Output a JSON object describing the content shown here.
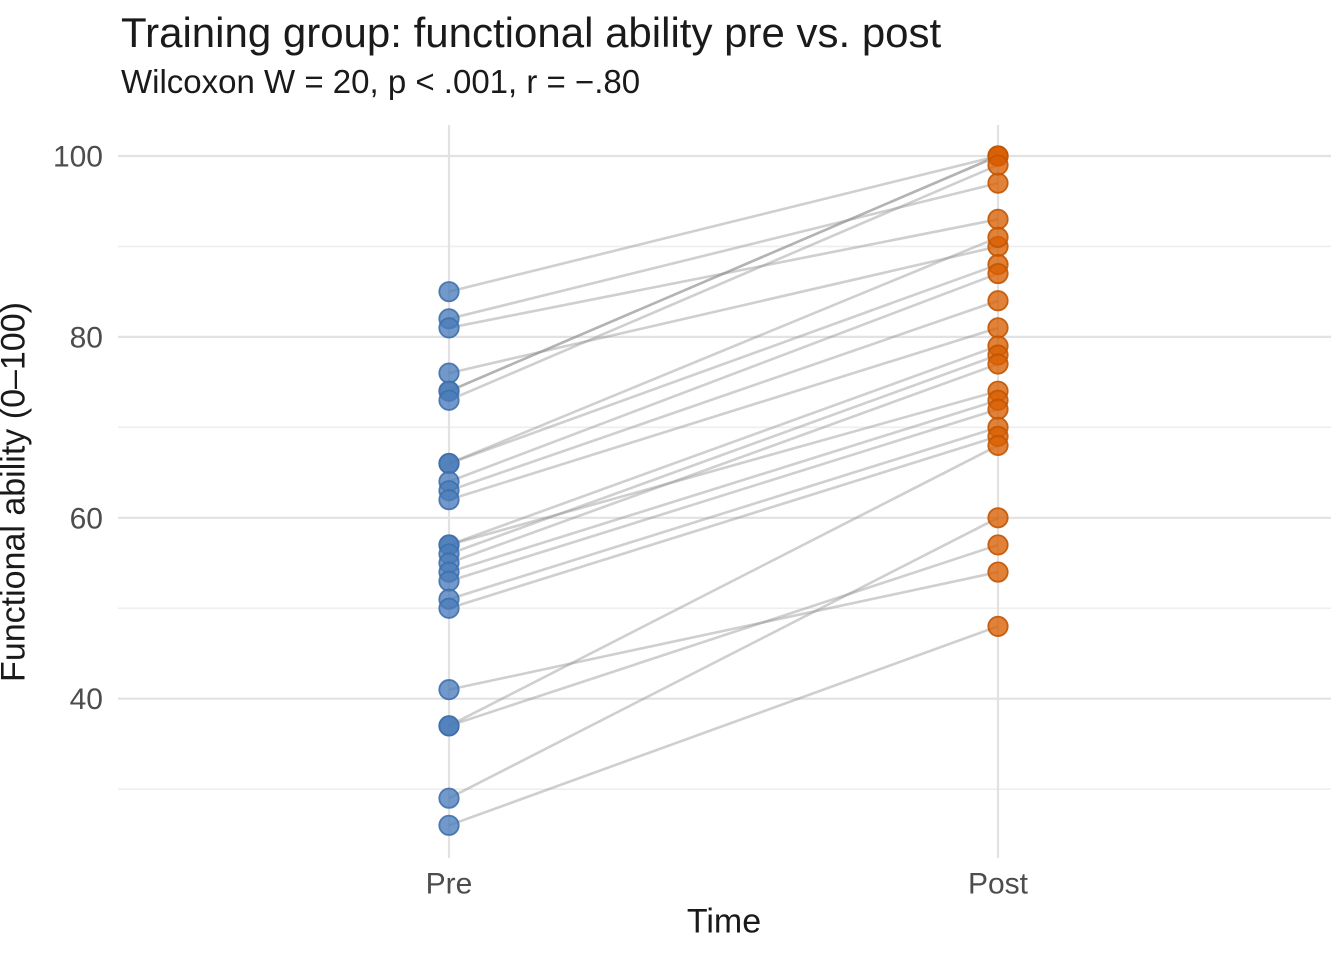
{
  "title": "Training group: functional ability pre vs. post",
  "subtitle": "Wilcoxon W = 20, p < .001, r = −.80",
  "chart_data": {
    "type": "scatter",
    "subtype": "paired-slope-chart",
    "categories": [
      "Pre",
      "Post"
    ],
    "xlabel": "Time",
    "ylabel": "Functional ability (0–100)",
    "y_major_ticks": [
      100,
      80,
      60,
      40
    ],
    "y_minor_gridlines": [
      90,
      70,
      50,
      30
    ],
    "ylim": [
      22,
      103
    ],
    "grid": "major+minor horizontal, major vertical at categories",
    "legend": "none",
    "n_pairs": 25,
    "series": [
      {
        "name": "Pre",
        "values": [
          85,
          82,
          81,
          76,
          74,
          74,
          73,
          66,
          66,
          64,
          63,
          62,
          57,
          57,
          56,
          55,
          54,
          53,
          51,
          50,
          41,
          37,
          37,
          29,
          26
        ]
      },
      {
        "name": "Post",
        "values": [
          100,
          97,
          93,
          90,
          100,
          100,
          99,
          91,
          88,
          87,
          84,
          81,
          79,
          74,
          78,
          77,
          73,
          72,
          70,
          69,
          54,
          68,
          57,
          60,
          48
        ]
      }
    ],
    "pairs": [
      [
        85,
        100
      ],
      [
        82,
        97
      ],
      [
        81,
        93
      ],
      [
        76,
        90
      ],
      [
        74,
        100
      ],
      [
        74,
        100
      ],
      [
        73,
        99
      ],
      [
        66,
        91
      ],
      [
        66,
        88
      ],
      [
        64,
        87
      ],
      [
        63,
        84
      ],
      [
        62,
        81
      ],
      [
        57,
        79
      ],
      [
        57,
        74
      ],
      [
        56,
        78
      ],
      [
        55,
        77
      ],
      [
        54,
        73
      ],
      [
        53,
        72
      ],
      [
        51,
        70
      ],
      [
        50,
        69
      ],
      [
        41,
        54
      ],
      [
        37,
        68
      ],
      [
        37,
        57
      ],
      [
        29,
        60
      ],
      [
        26,
        48
      ]
    ],
    "colors": {
      "pre_fill": "#4a7cba",
      "pre_stroke": "#3f70ac",
      "post_fill": "#d95f02",
      "post_stroke": "#c25502",
      "pair_line": "#8c8c8c",
      "grid_major": "#e2e2e2",
      "grid_minor": "#eeeeee",
      "text_dark": "#1a1a1a",
      "text_gray": "#4d4d4d"
    }
  }
}
